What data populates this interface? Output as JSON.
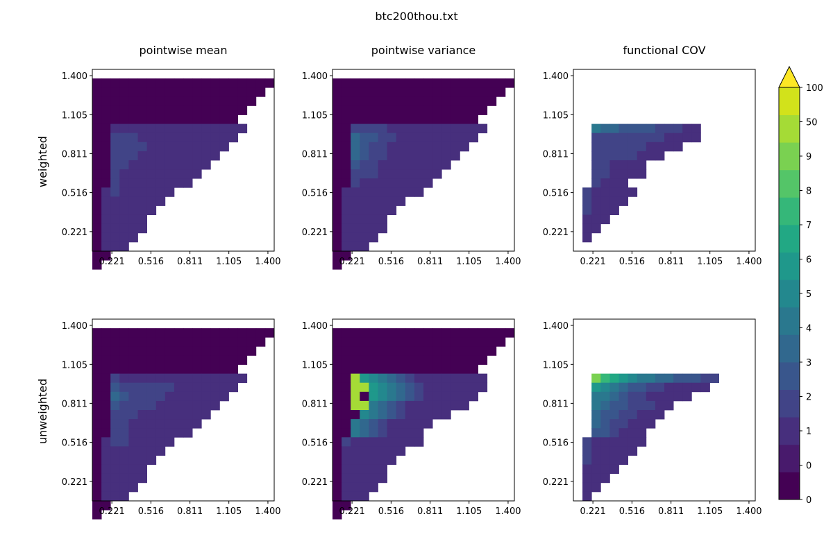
{
  "figure": {
    "title": "btc200thou.txt",
    "column_titles": [
      "pointwise mean",
      "pointwise variance",
      "functional COV"
    ],
    "row_labels": [
      "weighted",
      "unweighted"
    ]
  },
  "chart_data": {
    "type": "heatmap",
    "title": "btc200thou.txt",
    "tick_labels": [
      "0.221",
      "0.516",
      "0.811",
      "1.105",
      "1.400"
    ],
    "tick_values": [
      0.221,
      0.516,
      0.811,
      1.105,
      1.4
    ],
    "colorbar": {
      "tick_labels": [
        "0",
        "0",
        "1",
        "2",
        "3",
        "4",
        "5",
        "6",
        "7",
        "8",
        "9",
        "50",
        "100"
      ],
      "colors": [
        "#440154",
        "#481a6c",
        "#472f7d",
        "#414487",
        "#39568c",
        "#31688e",
        "#2a788e",
        "#23888e",
        "#1f988b",
        "#22a884",
        "#35b779",
        "#54c568",
        "#7ad151",
        "#a5db36",
        "#d2e21b",
        "#fde725"
      ],
      "extend": "max"
    },
    "panels": [
      {
        "row": "weighted",
        "column": "pointwise mean",
        "rows": [
          "",
          "bbbbbbbbbbbbbbbbbbbb",
          "bbbbbbbbbbbbbbbbbbb",
          "bbbbbbbbbbbbbbbbbb",
          "bbbbbbbbbbbbbbbbb",
          "bbbbbbbbbbbbbbbb",
          "bb111111111111111",
          "bb22211111111111",
          "bb2222111111111",
          "bb222111111111",
          "bb22111111111",
          "bb2111111111",
          "bb211111111",
          "b12111111",
          "b1111111",
          "b111111",
          "b11111",
          "b11111",
          "b1111",
          "b111",
          "bb",
          "b"
        ]
      },
      {
        "row": "weighted",
        "column": "pointwise variance",
        "rows": [
          "",
          "bbbbbbbbbbbbbbbbbbbb",
          "bbbbbbbbbbbbbbbbbbb",
          "bbbbbbbbbbbbbbbbbb",
          "bbbbbbbbbbbbbbbbb",
          "bbbbbbbbbbbbbbbb",
          "bb222211111111111",
          "bb43322111111111",
          "bb4322111111111",
          "bb432211111111",
          "bb32211111111",
          "bb2221111111",
          "bb211111111",
          "b111111111",
          "b1111111",
          "b111111",
          "b11111",
          "b11111",
          "b1111",
          "b111",
          "bb",
          "b"
        ]
      },
      {
        "row": "weighted",
        "column": "functional COV",
        "rows": [
          "",
          "",
          "",
          "",
          "",
          "",
          "__544333322211",
          "__222222221111",
          "__2222221111",
          "__22222111",
          "__221111",
          "__221111",
          "__2111",
          "_211111",
          "_21111",
          "_2111",
          "_111",
          "_11",
          "_1"
        ]
      },
      {
        "row": "unweighted",
        "column": "pointwise mean",
        "rows": [
          "",
          "bbbbbbbbbbbbbbbbbbbb",
          "bbbbbbbbbbbbbbbbbbb",
          "bbbbbbbbbbbbbbbbbb",
          "bbbbbbbbbbbbbbbbb",
          "bbbbbbbbbbbbbbbb",
          "bb211111111111111",
          "bb32222221111111",
          "bb4322221111111",
          "bb322221111111",
          "bb22211111111",
          "bb2211111111",
          "bb221111111",
          "b12211111",
          "b1111111",
          "b111111",
          "b11111",
          "b11111",
          "b1111",
          "b111",
          "bb",
          "b"
        ]
      },
      {
        "row": "unweighted",
        "column": "pointwise variance",
        "rows": [
          "",
          "bbbbbbbbbbbbbbbbbbbb",
          "bbbbbbbbbbbbbbbbbbb",
          "bbbbbbbbbbbbbbbbbb",
          "bbbbbbbbbbbbbbbbb",
          "bbbbbbbbbbbbbbbb",
          "bbc76543211111111",
          "bbcc7654321111111",
          "bbcb765432111111",
          "bbcc54321111111",
          "bbb6543211111",
          "bb543211111",
          "bb54321111",
          "b211111111",
          "b1111111",
          "b111111",
          "b11111",
          "b11111",
          "b1111",
          "b111",
          "bb",
          "b"
        ]
      },
      {
        "row": "unweighted",
        "column": "functional COV",
        "rows": [
          "",
          "",
          "",
          "",
          "",
          "",
          "__a9876554433322",
          "__7654332211111",
          "__55432211111",
          "__543322211",
          "__43322111",
          "__4322111",
          "__332111",
          "_2111111",
          "_211111",
          "_21111",
          "_1111",
          "_111",
          "_11",
          "_1"
        ]
      }
    ]
  }
}
